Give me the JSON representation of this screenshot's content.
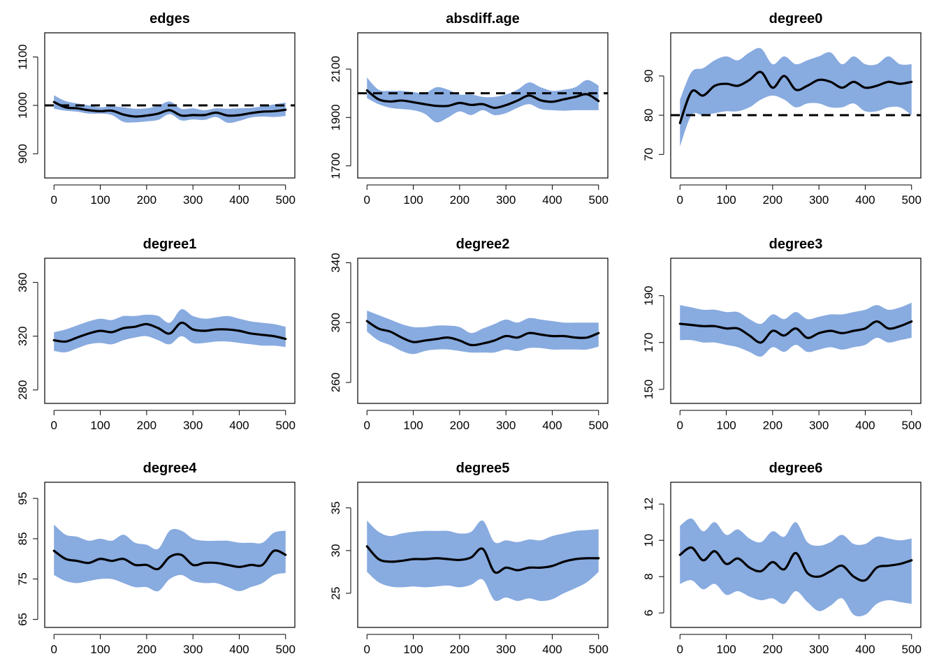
{
  "colors": {
    "band": "#88abe0",
    "line": "#000000",
    "target": "#000000"
  },
  "chart_data": [
    {
      "type": "area",
      "title": "edges",
      "xlim": [
        0,
        500
      ],
      "ylim": [
        850,
        1150
      ],
      "xticks": [
        0,
        100,
        200,
        300,
        400,
        500
      ],
      "yticks": [
        900,
        1000,
        1100
      ],
      "target": 1000,
      "x": [
        0,
        25,
        50,
        75,
        100,
        125,
        150,
        175,
        200,
        225,
        250,
        275,
        300,
        325,
        350,
        375,
        400,
        425,
        450,
        475,
        500
      ],
      "mean": [
        1007,
        996,
        994,
        990,
        988,
        989,
        981,
        977,
        979,
        983,
        990,
        979,
        980,
        980,
        985,
        979,
        980,
        984,
        987,
        988,
        991
      ],
      "lower": [
        993,
        989,
        987,
        983,
        983,
        980,
        966,
        965,
        967,
        970,
        982,
        969,
        971,
        970,
        976,
        964,
        968,
        975,
        977,
        976,
        978
      ],
      "upper": [
        1021,
        1009,
        1004,
        1000,
        996,
        998,
        996,
        993,
        994,
        999,
        1008,
        993,
        994,
        990,
        994,
        993,
        994,
        995,
        998,
        1002,
        1006
      ]
    },
    {
      "type": "area",
      "title": "absdiff.age",
      "xlim": [
        0,
        500
      ],
      "ylim": [
        1650,
        2250
      ],
      "xticks": [
        0,
        100,
        200,
        300,
        400,
        500
      ],
      "yticks": [
        1700,
        1900,
        2100
      ],
      "target": 2000,
      "x": [
        0,
        25,
        50,
        75,
        100,
        125,
        150,
        175,
        200,
        225,
        250,
        275,
        300,
        325,
        350,
        375,
        400,
        425,
        450,
        475,
        500
      ],
      "mean": [
        2012,
        1975,
        1966,
        1970,
        1963,
        1955,
        1948,
        1948,
        1960,
        1952,
        1955,
        1940,
        1951,
        1970,
        1991,
        1971,
        1965,
        1975,
        1985,
        1996,
        1968
      ],
      "lower": [
        1980,
        1955,
        1940,
        1935,
        1930,
        1915,
        1880,
        1900,
        1925,
        1910,
        1930,
        1910,
        1918,
        1940,
        1955,
        1935,
        1930,
        1928,
        1930,
        1930,
        1930
      ],
      "upper": [
        2065,
        2015,
        2010,
        2010,
        2005,
        2000,
        2025,
        2015,
        1995,
        1995,
        1985,
        1985,
        1995,
        2015,
        2045,
        2025,
        2010,
        2015,
        2025,
        2055,
        2032
      ]
    },
    {
      "type": "area",
      "title": "degree0",
      "xlim": [
        0,
        500
      ],
      "ylim": [
        64,
        101
      ],
      "xticks": [
        0,
        100,
        200,
        300,
        400,
        500
      ],
      "yticks": [
        70,
        80,
        90
      ],
      "target": 80,
      "x": [
        0,
        25,
        50,
        75,
        100,
        125,
        150,
        175,
        200,
        225,
        250,
        275,
        300,
        325,
        350,
        375,
        400,
        425,
        450,
        475,
        500
      ],
      "mean": [
        78,
        86,
        85,
        87.5,
        88,
        87.5,
        89,
        91,
        87,
        90,
        86.5,
        87.5,
        89,
        88.5,
        87,
        88.5,
        87,
        87.5,
        88.5,
        88,
        88.5
      ],
      "lower": [
        72,
        80,
        80,
        80.5,
        81,
        81,
        82,
        84,
        85,
        84,
        82,
        83,
        83,
        82,
        82,
        83,
        81,
        81,
        82,
        82,
        80
      ],
      "upper": [
        84,
        91,
        92,
        94,
        95,
        94,
        96,
        97,
        93,
        95,
        93,
        94,
        95,
        96,
        93,
        95,
        93,
        93,
        95,
        93,
        93
      ]
    },
    {
      "type": "area",
      "title": "degree1",
      "xlim": [
        0,
        500
      ],
      "ylim": [
        270,
        378
      ],
      "xticks": [
        0,
        100,
        200,
        300,
        400,
        500
      ],
      "yticks": [
        280,
        320,
        360
      ],
      "x": [
        0,
        25,
        50,
        75,
        100,
        125,
        150,
        175,
        200,
        225,
        250,
        275,
        300,
        325,
        350,
        375,
        400,
        425,
        450,
        475,
        500
      ],
      "mean": [
        317,
        316,
        319,
        322,
        324,
        323,
        326,
        327,
        329,
        326,
        322,
        330,
        325,
        324,
        325,
        325,
        324,
        322,
        321,
        320,
        318
      ],
      "lower": [
        309,
        308,
        311,
        314,
        315,
        314,
        317,
        319,
        320,
        317,
        314,
        320,
        315,
        315,
        316,
        316,
        315,
        314,
        313,
        313,
        312
      ],
      "upper": [
        323,
        325,
        328,
        331,
        333,
        332,
        335,
        335,
        336,
        335,
        330,
        340,
        335,
        333,
        334,
        335,
        333,
        331,
        330,
        329,
        327
      ]
    },
    {
      "type": "area",
      "title": "degree2",
      "xlim": [
        0,
        500
      ],
      "ylim": [
        246,
        343
      ],
      "xticks": [
        0,
        100,
        200,
        300,
        400,
        500
      ],
      "yticks": [
        260,
        300,
        340
      ],
      "x": [
        0,
        25,
        50,
        75,
        100,
        125,
        150,
        175,
        200,
        225,
        250,
        275,
        300,
        325,
        350,
        375,
        400,
        425,
        450,
        475,
        500
      ],
      "mean": [
        301,
        296,
        294,
        290,
        287,
        288,
        289,
        290,
        288,
        285,
        286,
        288,
        291,
        290,
        293,
        292,
        291,
        291,
        290,
        290,
        293
      ],
      "lower": [
        294,
        288,
        285,
        281,
        279,
        281,
        282,
        282,
        281,
        280,
        280,
        280,
        282,
        281,
        283,
        283,
        282,
        282,
        282,
        282,
        284
      ],
      "upper": [
        308,
        305,
        302,
        299,
        297,
        297,
        298,
        298,
        297,
        293,
        296,
        299,
        302,
        300,
        303,
        302,
        301,
        300,
        300,
        300,
        300
      ]
    },
    {
      "type": "area",
      "title": "degree3",
      "xlim": [
        0,
        500
      ],
      "ylim": [
        144,
        206
      ],
      "xticks": [
        0,
        100,
        200,
        300,
        400,
        500
      ],
      "yticks": [
        150,
        170,
        190
      ],
      "x": [
        0,
        25,
        50,
        75,
        100,
        125,
        150,
        175,
        200,
        225,
        250,
        275,
        300,
        325,
        350,
        375,
        400,
        425,
        450,
        475,
        500
      ],
      "mean": [
        178,
        177.5,
        177,
        177,
        176,
        176,
        173,
        170,
        175,
        173,
        176,
        172,
        174,
        175,
        174,
        175,
        176,
        179,
        176,
        177,
        179
      ],
      "lower": [
        171,
        171,
        170,
        170,
        169,
        168,
        166,
        164,
        168,
        166,
        169,
        166,
        167,
        168,
        167,
        168,
        169,
        172,
        170,
        171,
        172
      ],
      "upper": [
        186,
        185,
        184,
        184,
        183,
        183,
        180,
        178,
        182,
        180,
        183,
        180,
        181,
        182,
        182,
        183,
        184,
        186,
        184,
        185,
        187
      ]
    },
    {
      "type": "area",
      "title": "degree4",
      "xlim": [
        0,
        500
      ],
      "ylim": [
        63,
        99
      ],
      "xticks": [
        0,
        100,
        200,
        300,
        400,
        500
      ],
      "yticks": [
        65,
        75,
        85,
        95
      ],
      "x": [
        0,
        25,
        50,
        75,
        100,
        125,
        150,
        175,
        200,
        225,
        250,
        275,
        300,
        325,
        350,
        375,
        400,
        425,
        450,
        475,
        500
      ],
      "mean": [
        82,
        80,
        79.5,
        79,
        80,
        79.5,
        80,
        78.5,
        78.5,
        77.5,
        80.5,
        81,
        78.5,
        79,
        79,
        78.5,
        78,
        78.5,
        78.5,
        82,
        81
      ],
      "lower": [
        76,
        74.5,
        74,
        74.5,
        75,
        75,
        74,
        73,
        73,
        72,
        75,
        76,
        74.5,
        74,
        74,
        73,
        72,
        73,
        74,
        76,
        76.5
      ],
      "upper": [
        88.5,
        86,
        85.5,
        84.5,
        85,
        84.5,
        86,
        84,
        83.5,
        82.5,
        87,
        87,
        85,
        84.5,
        84.5,
        84.5,
        84,
        84,
        84,
        86.5,
        87
      ]
    },
    {
      "type": "area",
      "title": "degree5",
      "xlim": [
        0,
        500
      ],
      "ylim": [
        21,
        38
      ],
      "xticks": [
        0,
        100,
        200,
        300,
        400,
        500
      ],
      "yticks": [
        25,
        30,
        35
      ],
      "x": [
        0,
        25,
        50,
        75,
        100,
        125,
        150,
        175,
        200,
        225,
        250,
        275,
        300,
        325,
        350,
        375,
        400,
        425,
        450,
        475,
        500
      ],
      "mean": [
        30.5,
        29,
        28.7,
        28.8,
        29,
        29,
        29.1,
        29,
        28.9,
        29.2,
        30.2,
        27.5,
        28,
        27.7,
        28,
        28,
        28.2,
        28.7,
        29,
        29.1,
        29.1
      ],
      "lower": [
        27.5,
        26.3,
        25.8,
        25.7,
        25.8,
        25.7,
        25.8,
        25.9,
        25.7,
        26,
        26.6,
        24.2,
        24.5,
        24.1,
        24.4,
        24.1,
        24.3,
        25,
        25.6,
        26.3,
        27.5
      ],
      "upper": [
        33.5,
        32.2,
        31.7,
        32,
        32.2,
        32.3,
        32.3,
        32.3,
        32,
        32.2,
        33.5,
        31,
        31.2,
        31,
        31.3,
        31.2,
        31.7,
        32,
        32.3,
        32.4,
        32.5
      ]
    },
    {
      "type": "area",
      "title": "degree6",
      "xlim": [
        0,
        500
      ],
      "ylim": [
        5.2,
        13.2
      ],
      "xticks": [
        0,
        100,
        200,
        300,
        400,
        500
      ],
      "yticks": [
        6,
        8,
        10,
        12
      ],
      "x": [
        0,
        25,
        50,
        75,
        100,
        125,
        150,
        175,
        200,
        225,
        250,
        275,
        300,
        325,
        350,
        375,
        400,
        425,
        450,
        475,
        500
      ],
      "mean": [
        9.2,
        9.6,
        8.9,
        9.4,
        8.7,
        9.0,
        8.5,
        8.3,
        8.8,
        8.4,
        9.3,
        8.2,
        8.0,
        8.3,
        8.6,
        8.0,
        7.8,
        8.5,
        8.6,
        8.7,
        8.9
      ],
      "lower": [
        7.6,
        7.8,
        7.3,
        7.6,
        7.0,
        7.2,
        6.9,
        6.7,
        6.8,
        6.5,
        7.2,
        6.6,
        6.1,
        6.4,
        6.8,
        5.9,
        5.9,
        6.5,
        6.7,
        6.6,
        6.5
      ],
      "upper": [
        10.8,
        11.2,
        10.5,
        11.0,
        10.3,
        10.6,
        10.1,
        9.9,
        10.5,
        10.2,
        11.0,
        9.9,
        9.7,
        9.9,
        10.3,
        9.8,
        9.8,
        10.2,
        10.1,
        10.0,
        10.1
      ]
    }
  ]
}
